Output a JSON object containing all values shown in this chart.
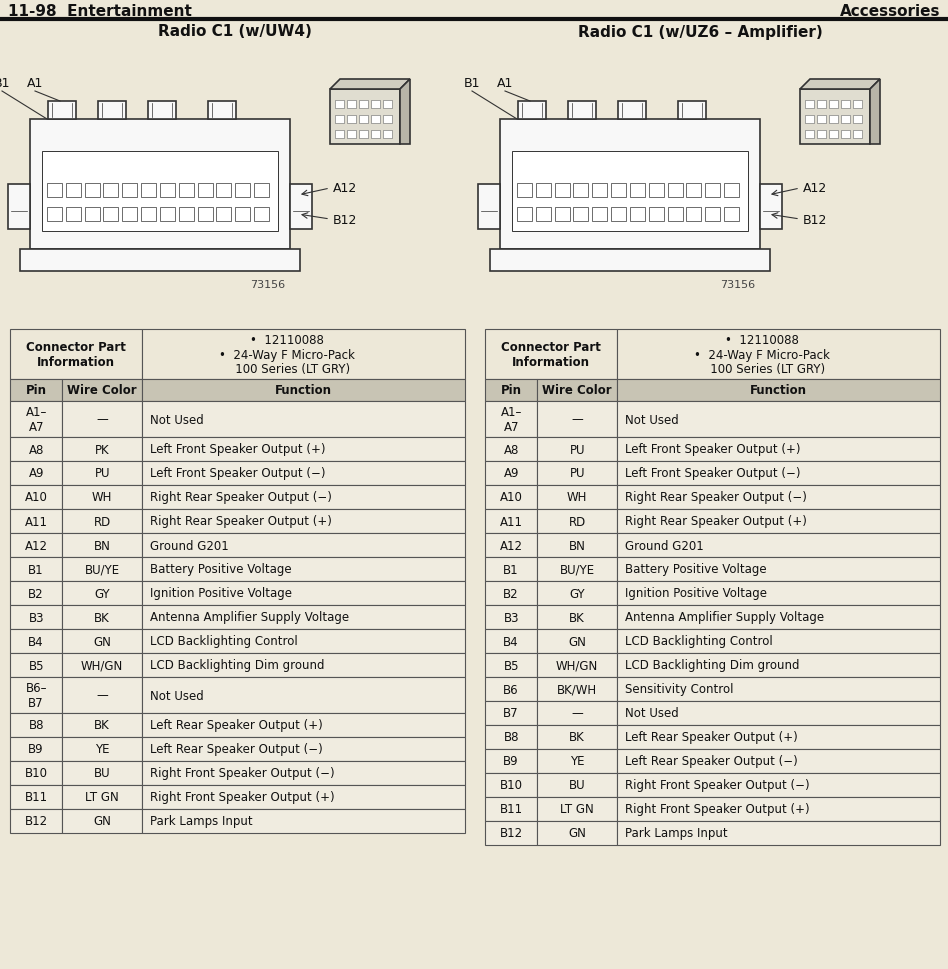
{
  "title_left": "11-98  Entertainment",
  "title_right": "Accessories",
  "section1_title": "Radio C1 (w/UW4)",
  "section2_title": "Radio C1 (w/UZ6 – Amplifier)",
  "connector_part_label": "Connector Part\nInformation",
  "bullets_line1": "•  12110088",
  "bullets_line2": "•  24-Way F Micro-Pack",
  "bullets_line3": "   100 Series (LT GRY)",
  "col_headers": [
    "Pin",
    "Wire Color",
    "Function"
  ],
  "table1_rows": [
    [
      "A1–\nA7",
      "—",
      "Not Used"
    ],
    [
      "A8",
      "PK",
      "Left Front Speaker Output (+)"
    ],
    [
      "A9",
      "PU",
      "Left Front Speaker Output (−)"
    ],
    [
      "A10",
      "WH",
      "Right Rear Speaker Output (−)"
    ],
    [
      "A11",
      "RD",
      "Right Rear Speaker Output (+)"
    ],
    [
      "A12",
      "BN",
      "Ground G201"
    ],
    [
      "B1",
      "BU/YE",
      "Battery Positive Voltage"
    ],
    [
      "B2",
      "GY",
      "Ignition Positive Voltage"
    ],
    [
      "B3",
      "BK",
      "Antenna Amplifier Supply Voltage"
    ],
    [
      "B4",
      "GN",
      "LCD Backlighting Control"
    ],
    [
      "B5",
      "WH/GN",
      "LCD Backlighting Dim ground"
    ],
    [
      "B6–\nB7",
      "—",
      "Not Used"
    ],
    [
      "B8",
      "BK",
      "Left Rear Speaker Output (+)"
    ],
    [
      "B9",
      "YE",
      "Left Rear Speaker Output (−)"
    ],
    [
      "B10",
      "BU",
      "Right Front Speaker Output (−)"
    ],
    [
      "B11",
      "LT GN",
      "Right Front Speaker Output (+)"
    ],
    [
      "B12",
      "GN",
      "Park Lamps Input"
    ]
  ],
  "table2_rows": [
    [
      "A1–\nA7",
      "—",
      "Not Used"
    ],
    [
      "A8",
      "PU",
      "Left Front Speaker Output (+)"
    ],
    [
      "A9",
      "PU",
      "Left Front Speaker Output (−)"
    ],
    [
      "A10",
      "WH",
      "Right Rear Speaker Output (−)"
    ],
    [
      "A11",
      "RD",
      "Right Rear Speaker Output (+)"
    ],
    [
      "A12",
      "BN",
      "Ground G201"
    ],
    [
      "B1",
      "BU/YE",
      "Battery Positive Voltage"
    ],
    [
      "B2",
      "GY",
      "Ignition Positive Voltage"
    ],
    [
      "B3",
      "BK",
      "Antenna Amplifier Supply Voltage"
    ],
    [
      "B4",
      "GN",
      "LCD Backlighting Control"
    ],
    [
      "B5",
      "WH/GN",
      "LCD Backlighting Dim ground"
    ],
    [
      "B6",
      "BK/WH",
      "Sensitivity Control"
    ],
    [
      "B7",
      "—",
      "Not Used"
    ],
    [
      "B8",
      "BK",
      "Left Rear Speaker Output (+)"
    ],
    [
      "B9",
      "YE",
      "Left Rear Speaker Output (−)"
    ],
    [
      "B10",
      "BU",
      "Right Front Speaker Output (−)"
    ],
    [
      "B11",
      "LT GN",
      "Right Front Speaker Output (+)"
    ],
    [
      "B12",
      "GN",
      "Park Lamps Input"
    ]
  ],
  "bg_color": "#ede8d8",
  "table_header_bg": "#c8c4b4",
  "table_row_bg": "#f0ece0",
  "border_color": "#555555",
  "text_color": "#111111",
  "header_bar_color": "#1a1a1a"
}
